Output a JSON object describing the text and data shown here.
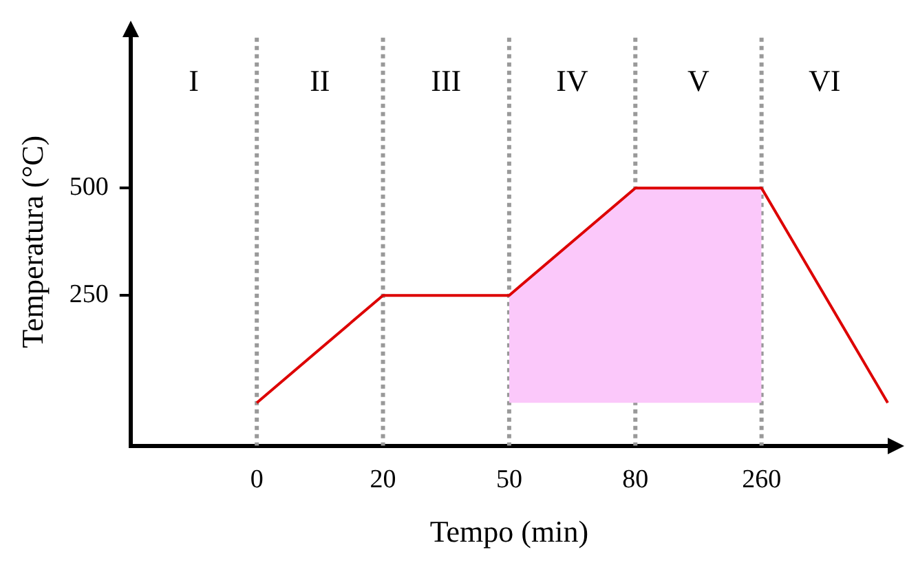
{
  "chart_data": {
    "type": "line",
    "xlabel": "Tempo (min)",
    "ylabel": "Temperatura (°C)",
    "categories": [
      null,
      "0",
      "20",
      "50",
      "80",
      "260",
      null
    ],
    "series": [
      {
        "color": "#dd0000",
        "values": [
          null,
          0,
          250,
          250,
          500,
          500,
          0
        ]
      },
      {
        "type": "area",
        "color": "#fbc8fa",
        "values": [
          null,
          null,
          null,
          250,
          500,
          500,
          null
        ]
      }
    ],
    "ylim": [
      -100,
      850
    ],
    "yticks": [
      250,
      500
    ],
    "grid": false,
    "legend": false,
    "marker": "none",
    "ref_lines": [
      {
        "axis": "x",
        "value": "0",
        "color": "#999999",
        "line_style": "dotted"
      },
      {
        "axis": "x",
        "value": "20",
        "color": "#999999",
        "line_style": "dotted"
      },
      {
        "axis": "x",
        "value": "50",
        "color": "#999999",
        "line_style": "dotted"
      },
      {
        "axis": "x",
        "value": "80",
        "color": "#999999",
        "line_style": "dotted"
      },
      {
        "axis": "x",
        "value": "260",
        "color": "#999999",
        "line_style": "dotted"
      }
    ],
    "annotations": [
      "I",
      "II",
      "III",
      "IV",
      "V",
      "VI"
    ]
  }
}
